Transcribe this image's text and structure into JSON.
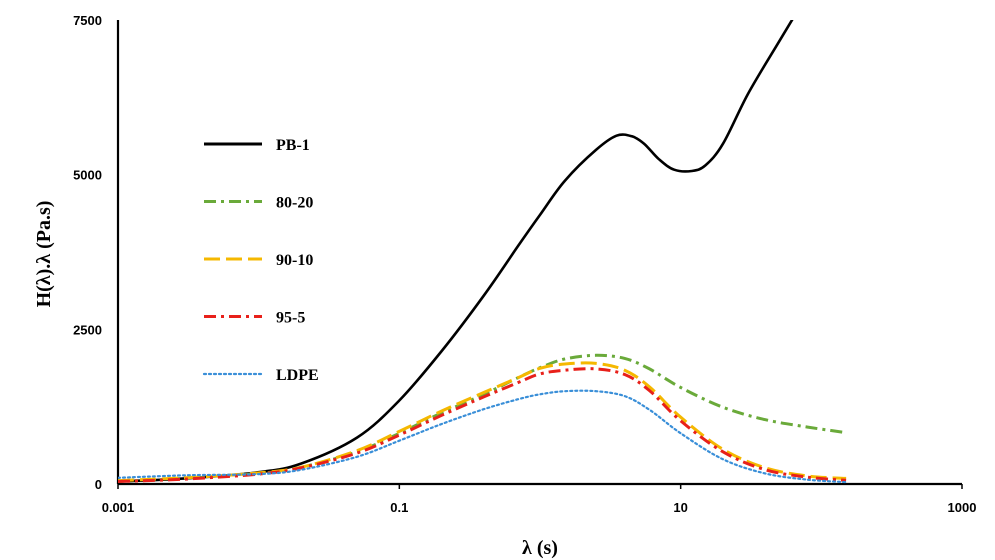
{
  "chart_data": {
    "type": "line",
    "title": "",
    "xlabel": "λ (s)",
    "ylabel": "H(λ).λ (Pa.s)",
    "xscale": "log",
    "xlim": [
      0.001,
      1000
    ],
    "ylim": [
      0,
      7500
    ],
    "xticks": [
      "0.001",
      "0.1",
      "10",
      "1000"
    ],
    "yticks": [
      "0",
      "2500",
      "5000",
      "7500"
    ],
    "grid": false,
    "legend_position": "left",
    "series": [
      {
        "name": "PB-1",
        "color": "#000000",
        "dash": "solid",
        "x": [
          0.001,
          0.003,
          0.01,
          0.02,
          0.05,
          0.1,
          0.2,
          0.4,
          0.7,
          1.0,
          1.5,
          2.5,
          3.5,
          4.5,
          5.5,
          7,
          9,
          12,
          15,
          20,
          30,
          50,
          70
        ],
        "y": [
          40,
          90,
          190,
          330,
          750,
          1350,
          2150,
          3050,
          3850,
          4350,
          4900,
          5400,
          5630,
          5620,
          5500,
          5250,
          5080,
          5060,
          5150,
          5500,
          6300,
          7150,
          7700
        ]
      },
      {
        "name": "80-20",
        "color": "#6aaa3a",
        "dash": "dashdot",
        "x": [
          0.001,
          0.003,
          0.01,
          0.02,
          0.05,
          0.1,
          0.2,
          0.4,
          0.7,
          1.0,
          1.5,
          2.5,
          4,
          6,
          10,
          20,
          40,
          80,
          150
        ],
        "y": [
          45,
          90,
          170,
          270,
          520,
          820,
          1150,
          1450,
          1720,
          1880,
          2020,
          2080,
          2030,
          1860,
          1560,
          1240,
          1040,
          920,
          830
        ]
      },
      {
        "name": "90-10",
        "color": "#f5b800",
        "dash": "longdash",
        "x": [
          0.001,
          0.003,
          0.01,
          0.02,
          0.05,
          0.1,
          0.2,
          0.4,
          0.7,
          1.0,
          1.5,
          2.5,
          4,
          6,
          10,
          20,
          40,
          80,
          150
        ],
        "y": [
          55,
          100,
          180,
          270,
          540,
          850,
          1180,
          1480,
          1720,
          1870,
          1940,
          1950,
          1840,
          1570,
          1080,
          560,
          260,
          130,
          90
        ]
      },
      {
        "name": "95-5",
        "color": "#e8201a",
        "dash": "dashdot",
        "x": [
          0.001,
          0.003,
          0.01,
          0.02,
          0.05,
          0.1,
          0.2,
          0.4,
          0.7,
          1.0,
          1.5,
          2.5,
          4,
          6,
          10,
          20,
          40,
          80,
          150
        ],
        "y": [
          40,
          80,
          160,
          260,
          500,
          790,
          1110,
          1410,
          1640,
          1780,
          1840,
          1860,
          1770,
          1510,
          1020,
          520,
          230,
          110,
          60
        ]
      },
      {
        "name": "LDPE",
        "color": "#3a8fd8",
        "dash": "dotted",
        "x": [
          0.001,
          0.003,
          0.01,
          0.02,
          0.05,
          0.1,
          0.2,
          0.4,
          0.7,
          1.0,
          1.5,
          2.5,
          4,
          6,
          10,
          20,
          40,
          80,
          150
        ],
        "y": [
          100,
          140,
          160,
          230,
          440,
          700,
          970,
          1210,
          1370,
          1450,
          1500,
          1500,
          1420,
          1200,
          820,
          400,
          170,
          70,
          30
        ]
      }
    ]
  }
}
